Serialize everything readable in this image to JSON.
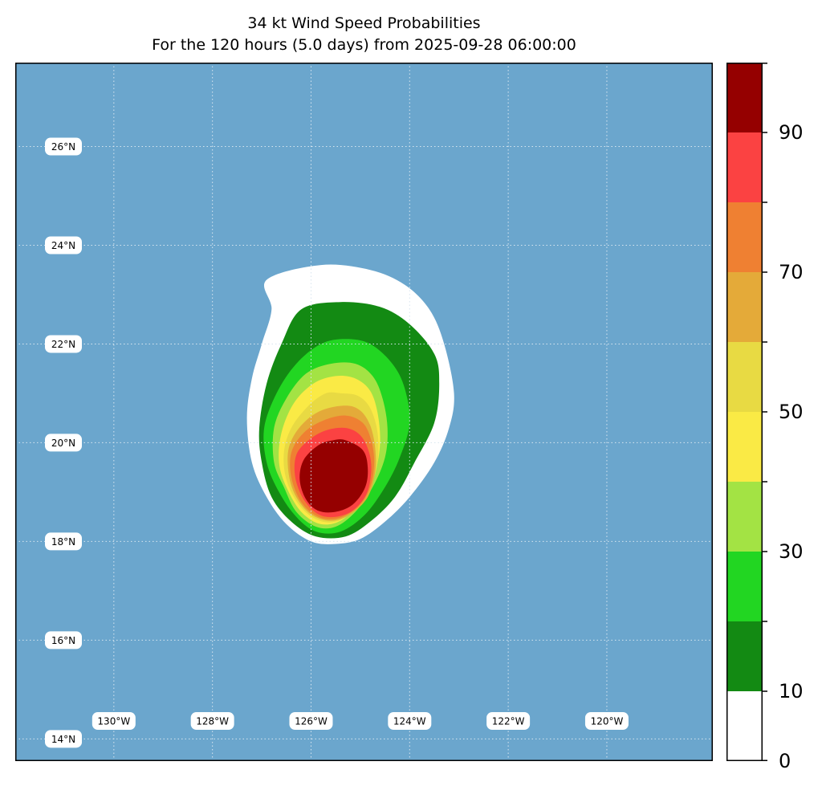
{
  "title": "34 kt Wind Speed Probabilities",
  "subtitle": "For the 120 hours (5.0 days) from 2025-09-28 06:00:00",
  "colors": {
    "ocean": "#6ba6cd",
    "levels": [
      "#ffffff",
      "#138a13",
      "#22d622",
      "#a3e344",
      "#faea45",
      "#e8da43",
      "#e4aa39",
      "#ef8032",
      "#fb4242",
      "#950000",
      "#7f24da"
    ]
  },
  "longitude_labels": [
    {
      "text": "130°W",
      "lon": -130
    },
    {
      "text": "128°W",
      "lon": -128
    },
    {
      "text": "126°W",
      "lon": -126
    },
    {
      "text": "124°W",
      "lon": -124
    },
    {
      "text": "122°W",
      "lon": -122
    },
    {
      "text": "120°W",
      "lon": -120
    }
  ],
  "latitude_labels": [
    {
      "text": "26°N",
      "lat": 26
    },
    {
      "text": "24°N",
      "lat": 24
    },
    {
      "text": "22°N",
      "lat": 22
    },
    {
      "text": "20°N",
      "lat": 20
    },
    {
      "text": "18°N",
      "lat": 18
    },
    {
      "text": "16°N",
      "lat": 16
    },
    {
      "text": "14°N",
      "lat": 14
    }
  ],
  "extent": {
    "lon_min": -132,
    "lon_max": -117.85,
    "lat_min": 13.55,
    "lat_max": 27.7
  },
  "colorbar": {
    "bounds": [
      0,
      10,
      20,
      30,
      40,
      50,
      60,
      70,
      80,
      90,
      100
    ],
    "tick_labels": [
      {
        "text": "0",
        "value": 0
      },
      {
        "text": "10",
        "value": 10
      },
      {
        "text": "30",
        "value": 30
      },
      {
        "text": "50",
        "value": 50
      },
      {
        "text": "70",
        "value": 70
      },
      {
        "text": "90",
        "value": 90
      }
    ]
  },
  "probability_contours": [
    {
      "level": 5,
      "points": [
        [
          -126.9,
          23.3
        ],
        [
          -125.8,
          23.6
        ],
        [
          -124.8,
          23.5
        ],
        [
          -124.1,
          23.2
        ],
        [
          -123.6,
          22.7
        ],
        [
          -123.3,
          22.0
        ],
        [
          -123.1,
          21.0
        ],
        [
          -123.2,
          20.3
        ],
        [
          -123.5,
          19.6
        ],
        [
          -124.0,
          18.9
        ],
        [
          -124.5,
          18.4
        ],
        [
          -125.0,
          18.05
        ],
        [
          -125.5,
          17.95
        ],
        [
          -126.0,
          18.0
        ],
        [
          -126.5,
          18.35
        ],
        [
          -126.9,
          18.9
        ],
        [
          -127.2,
          19.6
        ],
        [
          -127.3,
          20.5
        ],
        [
          -127.2,
          21.3
        ],
        [
          -127.0,
          22.0
        ],
        [
          -126.8,
          22.7
        ]
      ]
    },
    {
      "level": 15,
      "points": [
        [
          -126.2,
          22.7
        ],
        [
          -125.4,
          22.85
        ],
        [
          -124.6,
          22.75
        ],
        [
          -124.0,
          22.4
        ],
        [
          -123.5,
          21.8
        ],
        [
          -123.4,
          21.2
        ],
        [
          -123.5,
          20.4
        ],
        [
          -123.9,
          19.6
        ],
        [
          -124.3,
          18.9
        ],
        [
          -124.8,
          18.4
        ],
        [
          -125.3,
          18.1
        ],
        [
          -125.9,
          18.1
        ],
        [
          -126.4,
          18.4
        ],
        [
          -126.8,
          18.9
        ],
        [
          -127.0,
          19.6
        ],
        [
          -127.05,
          20.3
        ],
        [
          -126.9,
          21.2
        ],
        [
          -126.6,
          22.0
        ]
      ]
    },
    {
      "level": 25,
      "points": [
        [
          -125.8,
          22.0
        ],
        [
          -125.3,
          22.1
        ],
        [
          -124.8,
          22.0
        ],
        [
          -124.35,
          21.6
        ],
        [
          -124.1,
          21.1
        ],
        [
          -124.0,
          20.4
        ],
        [
          -124.2,
          19.7
        ],
        [
          -124.5,
          19.1
        ],
        [
          -124.9,
          18.55
        ],
        [
          -125.4,
          18.2
        ],
        [
          -125.9,
          18.2
        ],
        [
          -126.3,
          18.5
        ],
        [
          -126.65,
          19.0
        ],
        [
          -126.9,
          19.6
        ],
        [
          -126.95,
          20.3
        ],
        [
          -126.7,
          21.0
        ],
        [
          -126.3,
          21.6
        ]
      ]
    },
    {
      "level": 35,
      "points": [
        [
          -125.6,
          21.6
        ],
        [
          -125.1,
          21.6
        ],
        [
          -124.75,
          21.35
        ],
        [
          -124.55,
          20.9
        ],
        [
          -124.45,
          20.3
        ],
        [
          -124.5,
          19.7
        ],
        [
          -124.75,
          19.1
        ],
        [
          -125.1,
          18.6
        ],
        [
          -125.5,
          18.3
        ],
        [
          -125.9,
          18.3
        ],
        [
          -126.3,
          18.6
        ],
        [
          -126.55,
          19.1
        ],
        [
          -126.75,
          19.6
        ],
        [
          -126.75,
          20.3
        ],
        [
          -126.5,
          20.9
        ],
        [
          -126.1,
          21.4
        ]
      ]
    },
    {
      "level": 45,
      "points": [
        [
          -125.5,
          21.35
        ],
        [
          -125.1,
          21.3
        ],
        [
          -124.8,
          21.05
        ],
        [
          -124.65,
          20.6
        ],
        [
          -124.6,
          20.0
        ],
        [
          -124.7,
          19.4
        ],
        [
          -124.95,
          18.9
        ],
        [
          -125.35,
          18.45
        ],
        [
          -125.8,
          18.35
        ],
        [
          -126.2,
          18.6
        ],
        [
          -126.5,
          19.1
        ],
        [
          -126.65,
          19.6
        ],
        [
          -126.6,
          20.2
        ],
        [
          -126.35,
          20.8
        ],
        [
          -125.95,
          21.2
        ]
      ]
    },
    {
      "level": 55,
      "points": [
        [
          -125.4,
          21.0
        ],
        [
          -125.05,
          20.95
        ],
        [
          -124.8,
          20.7
        ],
        [
          -124.65,
          20.2
        ],
        [
          -124.65,
          19.6
        ],
        [
          -124.8,
          19.1
        ],
        [
          -125.1,
          18.65
        ],
        [
          -125.5,
          18.4
        ],
        [
          -125.9,
          18.45
        ],
        [
          -126.25,
          18.75
        ],
        [
          -126.5,
          19.25
        ],
        [
          -126.55,
          19.8
        ],
        [
          -126.4,
          20.3
        ],
        [
          -126.05,
          20.75
        ],
        [
          -125.7,
          21.0
        ]
      ]
    },
    {
      "level": 65,
      "points": [
        [
          -125.3,
          20.75
        ],
        [
          -125.0,
          20.65
        ],
        [
          -124.8,
          20.35
        ],
        [
          -124.7,
          19.9
        ],
        [
          -124.7,
          19.4
        ],
        [
          -124.85,
          18.9
        ],
        [
          -125.2,
          18.55
        ],
        [
          -125.6,
          18.42
        ],
        [
          -126.0,
          18.55
        ],
        [
          -126.3,
          18.9
        ],
        [
          -126.45,
          19.35
        ],
        [
          -126.45,
          19.9
        ],
        [
          -126.2,
          20.35
        ],
        [
          -125.8,
          20.65
        ]
      ]
    },
    {
      "level": 75,
      "points": [
        [
          -125.3,
          20.55
        ],
        [
          -124.95,
          20.4
        ],
        [
          -124.78,
          20.05
        ],
        [
          -124.72,
          19.6
        ],
        [
          -124.8,
          19.1
        ],
        [
          -125.05,
          18.7
        ],
        [
          -125.45,
          18.47
        ],
        [
          -125.85,
          18.5
        ],
        [
          -126.2,
          18.8
        ],
        [
          -126.4,
          19.3
        ],
        [
          -126.4,
          19.8
        ],
        [
          -126.15,
          20.2
        ],
        [
          -125.75,
          20.45
        ]
      ]
    },
    {
      "level": 85,
      "points": [
        [
          -125.3,
          20.3
        ],
        [
          -125.0,
          20.15
        ],
        [
          -124.82,
          19.8
        ],
        [
          -124.78,
          19.4
        ],
        [
          -124.88,
          18.95
        ],
        [
          -125.15,
          18.63
        ],
        [
          -125.5,
          18.5
        ],
        [
          -125.85,
          18.55
        ],
        [
          -126.15,
          18.85
        ],
        [
          -126.32,
          19.3
        ],
        [
          -126.3,
          19.75
        ],
        [
          -126.05,
          20.05
        ],
        [
          -125.7,
          20.25
        ]
      ]
    },
    {
      "level": 95,
      "points": [
        [
          -125.3,
          20.05
        ],
        [
          -124.95,
          19.85
        ],
        [
          -124.85,
          19.5
        ],
        [
          -124.9,
          19.1
        ],
        [
          -125.15,
          18.75
        ],
        [
          -125.5,
          18.6
        ],
        [
          -125.85,
          18.62
        ],
        [
          -126.1,
          18.85
        ],
        [
          -126.23,
          19.25
        ],
        [
          -126.15,
          19.65
        ],
        [
          -125.85,
          19.95
        ],
        [
          -125.55,
          20.05
        ]
      ]
    }
  ]
}
